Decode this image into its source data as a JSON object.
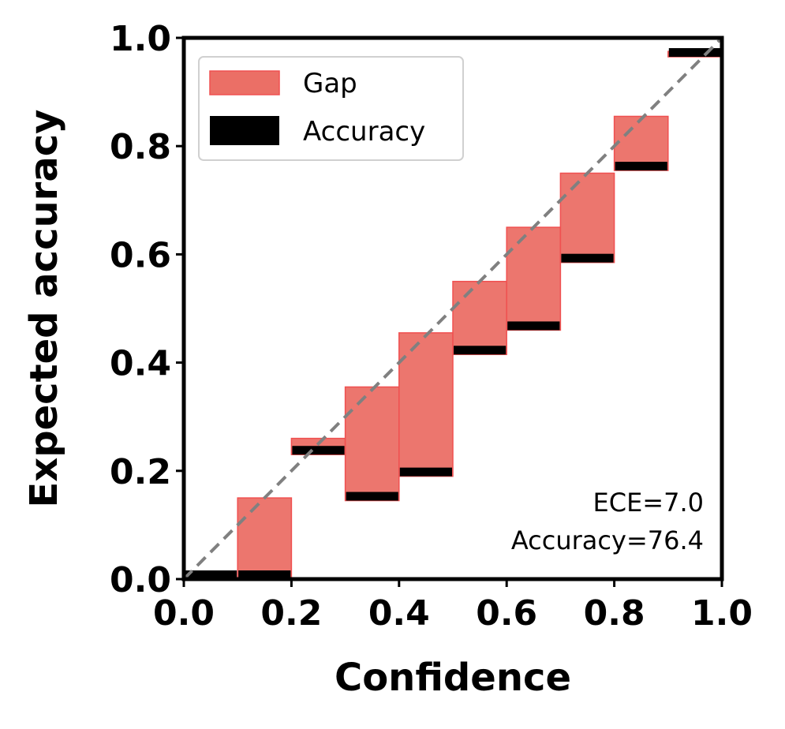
{
  "chart_data": {
    "type": "bar",
    "xlabel": "Confidence",
    "ylabel": "Expected accuracy",
    "xlim": [
      0.0,
      1.0
    ],
    "ylim": [
      0.0,
      1.0
    ],
    "xticks": [
      "0.0",
      "0.2",
      "0.4",
      "0.6",
      "0.8",
      "1.0"
    ],
    "yticks": [
      "0.0",
      "0.2",
      "0.4",
      "0.6",
      "0.8",
      "1.0"
    ],
    "grid": false,
    "legend_position": "top-left",
    "bin_width": 0.1,
    "bins": [
      {
        "x": 0.05,
        "accuracy": 0.0,
        "confidence": null
      },
      {
        "x": 0.15,
        "accuracy": 0.0,
        "confidence": 0.15
      },
      {
        "x": 0.25,
        "accuracy": 0.23,
        "confidence": 0.26
      },
      {
        "x": 0.35,
        "accuracy": 0.145,
        "confidence": 0.355
      },
      {
        "x": 0.45,
        "accuracy": 0.19,
        "confidence": 0.455
      },
      {
        "x": 0.55,
        "accuracy": 0.415,
        "confidence": 0.55
      },
      {
        "x": 0.65,
        "accuracy": 0.46,
        "confidence": 0.65
      },
      {
        "x": 0.75,
        "accuracy": 0.585,
        "confidence": 0.75
      },
      {
        "x": 0.85,
        "accuracy": 0.755,
        "confidence": 0.855
      },
      {
        "x": 0.95,
        "accuracy": 0.965,
        "confidence": 0.975
      }
    ],
    "series": [
      {
        "name": "Gap",
        "color": "#eb6f66"
      },
      {
        "name": "Accuracy",
        "color": "#000000"
      }
    ],
    "diagonal": {
      "style": "dashed",
      "color": "#808080"
    },
    "annotations": [
      "ECE=7.0",
      "Accuracy=76.4"
    ]
  }
}
